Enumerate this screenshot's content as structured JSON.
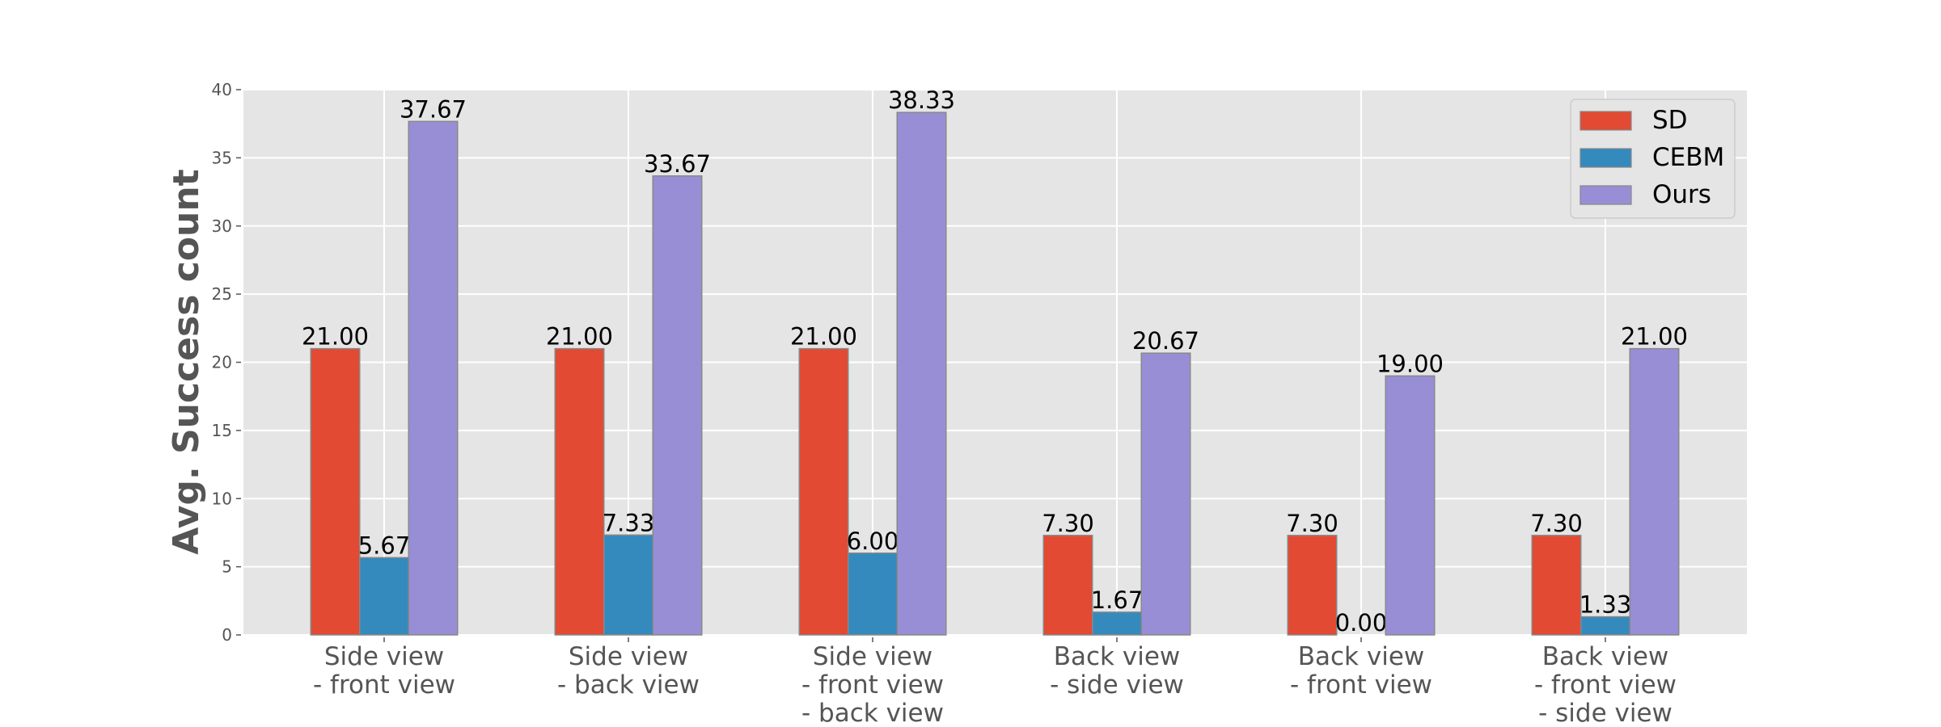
{
  "chart_data": {
    "type": "bar",
    "title": "",
    "xlabel": "",
    "ylabel": "Avg. Success count",
    "ylim": [
      0,
      40
    ],
    "yticks": [
      0,
      5,
      10,
      15,
      20,
      25,
      30,
      35,
      40
    ],
    "grid": true,
    "legend_position": "upper right",
    "categories": [
      [
        "Side view",
        "- front view"
      ],
      [
        "Side view",
        "- back view"
      ],
      [
        "Side view",
        "- front view",
        "- back view"
      ],
      [
        "Back view",
        "- side view"
      ],
      [
        "Back view",
        "- front view"
      ],
      [
        "Back view",
        "- front view",
        "- side view"
      ]
    ],
    "series": [
      {
        "name": "SD",
        "color": "#e24a33",
        "values": [
          21.0,
          21.0,
          21.0,
          7.3,
          7.3,
          7.3
        ],
        "labels": [
          "21.00",
          "21.00",
          "21.00",
          "7.30",
          "7.30",
          "7.30"
        ]
      },
      {
        "name": "CEBM",
        "color": "#348abd",
        "values": [
          5.67,
          7.33,
          6.0,
          1.67,
          0.0,
          1.33
        ],
        "labels": [
          "5.67",
          "7.33",
          "6.00",
          "1.67",
          "0.00",
          "1.33"
        ]
      },
      {
        "name": "Ours",
        "color": "#988ed5",
        "values": [
          37.67,
          33.67,
          38.33,
          20.67,
          19.0,
          21.0
        ],
        "labels": [
          "37.67",
          "33.67",
          "38.33",
          "20.67",
          "19.00",
          "21.00"
        ]
      }
    ]
  },
  "style": {
    "plot_bg": "#e5e5e5",
    "grid_color": "#ffffff",
    "axis_text_color": "#555555"
  }
}
